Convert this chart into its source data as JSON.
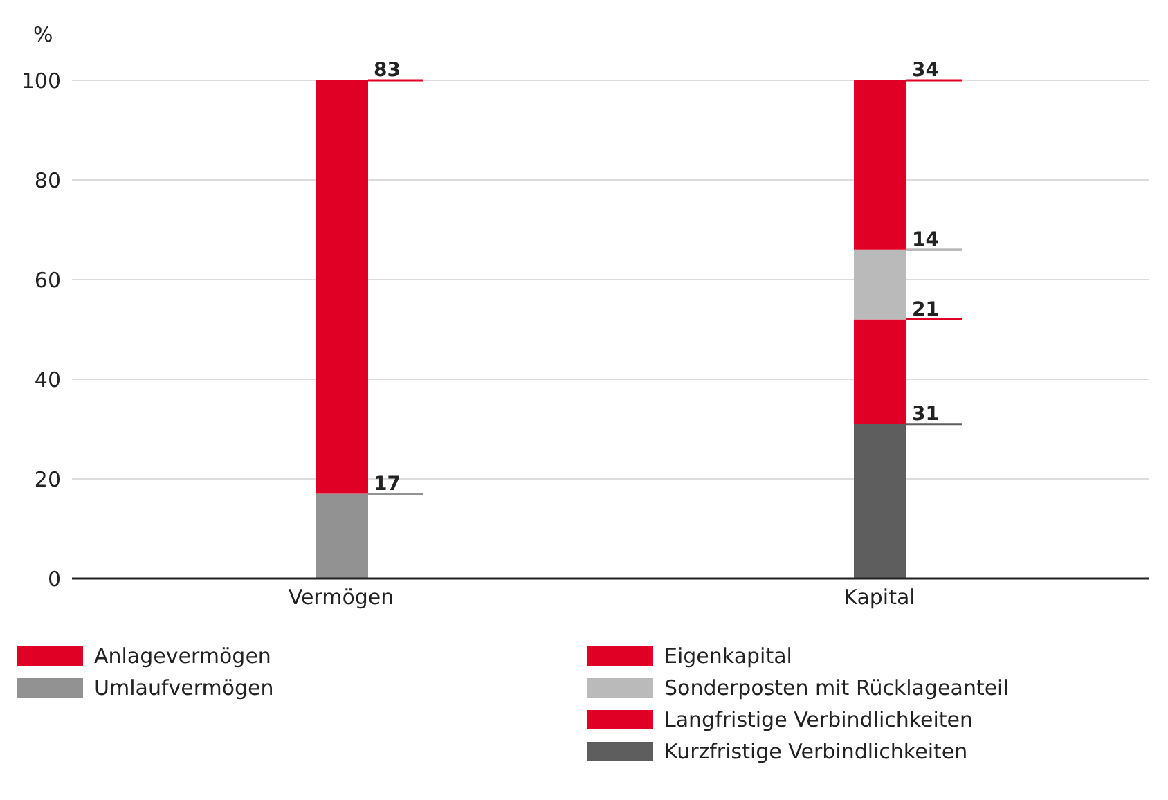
{
  "chart_data": {
    "type": "bar",
    "ylabel": "%",
    "categories": [
      "Vermögen",
      "Kapital"
    ],
    "stacked": true,
    "data_labels": true,
    "grid": "y",
    "legend": "bottom",
    "ylim": [
      0,
      100
    ],
    "yticks": [
      0,
      20,
      40,
      60,
      80,
      100
    ],
    "series": [
      {
        "name": "Umlaufvermögen",
        "color": "#929292",
        "values": [
          17,
          null
        ]
      },
      {
        "name": "Anlagevermögen",
        "color": "#e00025",
        "values": [
          83,
          null
        ]
      },
      {
        "name": "Kurzfristige Verbindlichkeiten",
        "color": "#5e5e5e",
        "values": [
          null,
          31
        ]
      },
      {
        "name": "Langfristige Verbindlichkeiten",
        "color": "#e00025",
        "values": [
          null,
          21
        ]
      },
      {
        "name": "Sonderposten mit Rücklageanteil",
        "color": "#bababa",
        "values": [
          null,
          14
        ]
      },
      {
        "name": "Eigenkapital",
        "color": "#e00025",
        "values": [
          null,
          34
        ]
      }
    ]
  }
}
